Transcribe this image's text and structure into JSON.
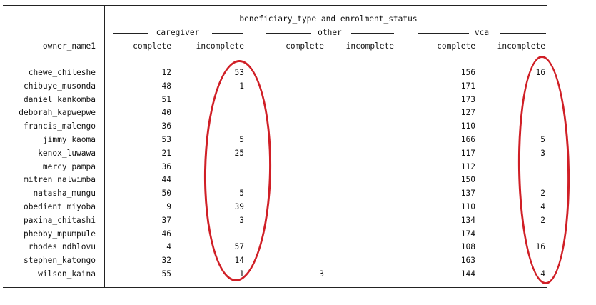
{
  "table": {
    "row_var": "owner_name1",
    "spanner": "beneficiary_type and enrolment_status",
    "groups": [
      "caregiver",
      "other",
      "vca"
    ],
    "subheaders": [
      "complete",
      "incomplete",
      "complete",
      "incomplete",
      "complete",
      "incomplete"
    ],
    "rows": [
      {
        "name": "chewe_chileshe",
        "cells": [
          "12",
          "53",
          "",
          "",
          "156",
          "16"
        ]
      },
      {
        "name": "chibuye_musonda",
        "cells": [
          "48",
          "1",
          "",
          "",
          "171",
          ""
        ]
      },
      {
        "name": "daniel_kankomba",
        "cells": [
          "51",
          "",
          "",
          "",
          "173",
          ""
        ]
      },
      {
        "name": "deborah_kapwepwe",
        "cells": [
          "40",
          "",
          "",
          "",
          "127",
          ""
        ]
      },
      {
        "name": "francis_malengo",
        "cells": [
          "36",
          "",
          "",
          "",
          "110",
          ""
        ]
      },
      {
        "name": "jimmy_kaoma",
        "cells": [
          "53",
          "5",
          "",
          "",
          "166",
          "5"
        ]
      },
      {
        "name": "kenox_luwawa",
        "cells": [
          "21",
          "25",
          "",
          "",
          "117",
          "3"
        ]
      },
      {
        "name": "mercy_pampa",
        "cells": [
          "36",
          "",
          "",
          "",
          "112",
          ""
        ]
      },
      {
        "name": "mitren_nalwimba",
        "cells": [
          "44",
          "",
          "",
          "",
          "150",
          ""
        ]
      },
      {
        "name": "natasha_mungu",
        "cells": [
          "50",
          "5",
          "",
          "",
          "137",
          "2"
        ]
      },
      {
        "name": "obedient_miyoba",
        "cells": [
          "9",
          "39",
          "",
          "",
          "110",
          "4"
        ]
      },
      {
        "name": "paxina_chitashi",
        "cells": [
          "37",
          "3",
          "",
          "",
          "134",
          "2"
        ]
      },
      {
        "name": "phebby_mpumpule",
        "cells": [
          "46",
          "",
          "",
          "",
          "174",
          ""
        ]
      },
      {
        "name": "rhodes_ndhlovu",
        "cells": [
          "4",
          "57",
          "",
          "",
          "108",
          "16"
        ]
      },
      {
        "name": "stephen_katongo",
        "cells": [
          "32",
          "14",
          "",
          "",
          "163",
          ""
        ]
      },
      {
        "name": "wilson_kaina",
        "cells": [
          "55",
          "1",
          "3",
          "",
          "144",
          "4"
        ]
      }
    ]
  },
  "annotation_color": "#d01f26"
}
